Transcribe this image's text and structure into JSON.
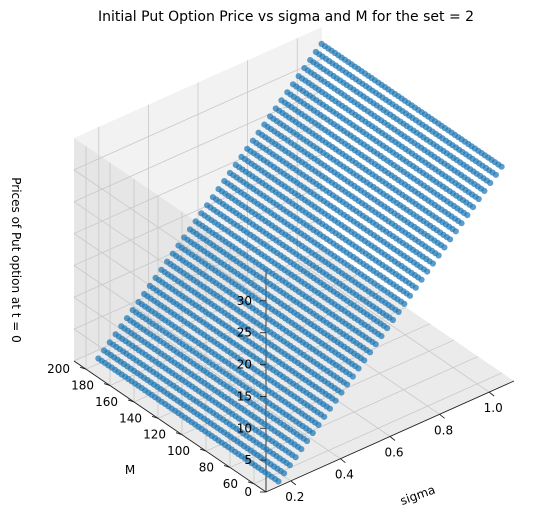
{
  "chart_data": {
    "type": "scatter",
    "projection": "3d",
    "title": "Initial Put Option Price vs sigma and M for the set = 2",
    "xlabel": "sigma",
    "ylabel": "M",
    "zlabel": "Prices of Put option at t = 0",
    "xlim": [
      0.1,
      1.1
    ],
    "ylim": [
      50,
      210
    ],
    "zlim": [
      0,
      35
    ],
    "x_ticks": [
      "0.2",
      "0.4",
      "0.6",
      "0.8",
      "1.0"
    ],
    "y_ticks": [
      "60",
      "80",
      "100",
      "120",
      "140",
      "160",
      "180",
      "200"
    ],
    "z_ticks": [
      "0",
      "5",
      "10",
      "15",
      "20",
      "25",
      "30"
    ],
    "grid": true,
    "marker_color": "#1f77b4",
    "surface": {
      "sigma_range": [
        0.15,
        1.05
      ],
      "M_range": [
        50,
        200
      ],
      "price_at_sigma_min": 0.8,
      "price_at_sigma_max": 34.5
    }
  }
}
